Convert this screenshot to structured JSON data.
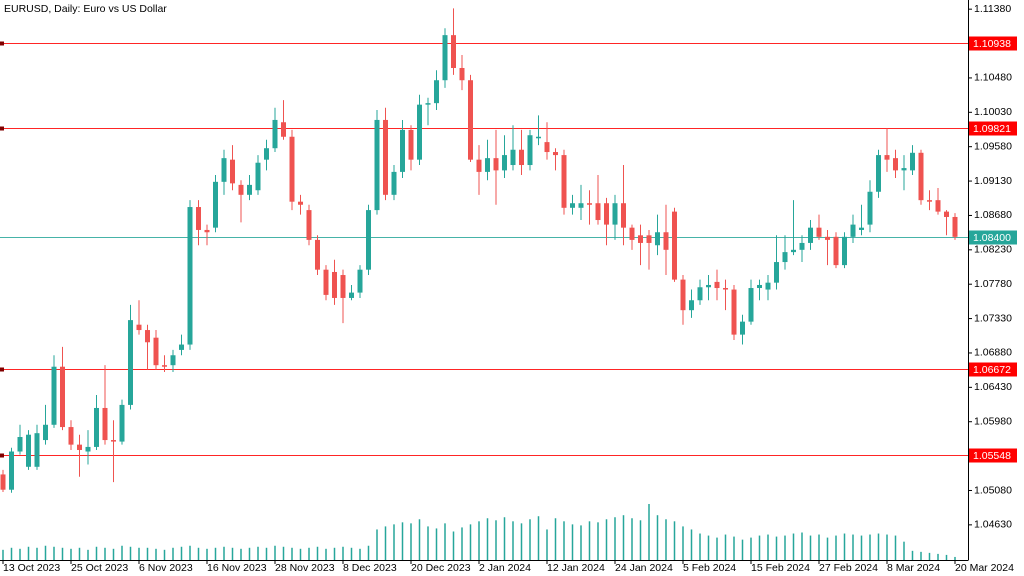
{
  "chart_data": {
    "type": "candlestick",
    "title": "EURUSD, Daily:  Euro vs US Dollar",
    "categories": [
      "13 Oct 2023",
      null,
      null,
      null,
      null,
      null,
      null,
      null,
      "25 Oct 2023",
      null,
      null,
      null,
      null,
      null,
      null,
      null,
      "6 Nov 2023",
      null,
      null,
      null,
      null,
      null,
      null,
      null,
      "16 Nov 2023",
      null,
      null,
      null,
      null,
      null,
      null,
      null,
      "28 Nov 2023",
      null,
      null,
      null,
      null,
      null,
      null,
      null,
      "8 Dec 2023",
      null,
      null,
      null,
      null,
      null,
      null,
      null,
      "20 Dec 2023",
      null,
      null,
      null,
      null,
      null,
      null,
      null,
      "2 Jan 2024",
      null,
      null,
      null,
      null,
      null,
      null,
      null,
      "12 Jan 2024",
      null,
      null,
      null,
      null,
      null,
      null,
      null,
      "24 Jan 2024",
      null,
      null,
      null,
      null,
      null,
      null,
      null,
      "5 Feb 2024",
      null,
      null,
      null,
      null,
      null,
      null,
      null,
      "15 Feb 2024",
      null,
      null,
      null,
      null,
      null,
      null,
      null,
      "27 Feb 2024",
      null,
      null,
      null,
      null,
      null,
      null,
      null,
      "8 Mar 2024",
      null,
      null,
      null,
      null,
      null,
      null,
      null,
      "20 Mar 2024"
    ],
    "open": [
      1.0529,
      1.0509,
      1.0559,
      1.0539,
      1.0539,
      1.0574,
      1.0594,
      1.067,
      1.0591,
      1.0568,
      1.0559,
      1.0565,
      1.0616,
      1.0574,
      1.0572,
      1.062,
      1.0725,
      1.0718,
      1.0708,
      1.0672,
      1.0672,
      1.0692,
      1.0699,
      1.0879,
      1.0849,
      1.0852,
      1.0912,
      1.0941,
      1.0908,
      1.0895,
      1.0901,
      1.0941,
      1.0956,
      1.099,
      1.0971,
      1.0886,
      1.0875,
      1.0836,
      1.0797,
      1.0794,
      1.079,
      1.076,
      1.0767,
      1.0797,
      1.0875,
      1.0993,
      1.0895,
      1.0925,
      1.098,
      1.0941,
      1.1013,
      1.1015,
      1.1045,
      1.1104,
      1.1061,
      1.1045,
      1.0941,
      1.0925,
      1.0943,
      1.0927,
      1.0934,
      1.0954,
      1.0934,
      1.0969,
      1.0964,
      1.0951,
      1.0947,
      1.0878,
      1.0878,
      1.0884,
      1.0884,
      1.0884,
      1.0856,
      1.0884,
      1.0852,
      1.0842,
      1.0842,
      1.0829,
      1.0846,
      1.0873,
      1.0784,
      1.0744,
      1.0757,
      1.0774,
      1.0781,
      1.0773,
      1.0771,
      1.0712,
      1.0729,
      1.0773,
      1.0771,
      1.078,
      1.0807,
      1.082,
      1.0823,
      1.0832,
      1.0852,
      1.084,
      1.084,
      1.0803,
      1.084,
      1.0849,
      1.0856,
      1.0899,
      1.0947,
      1.0943,
      1.0927,
      1.0927,
      1.095,
      1.0888,
      1.0888,
      1.0873,
      1.0866
    ],
    "high": [
      1.0535,
      1.0564,
      1.0594,
      1.0587,
      1.0594,
      1.062,
      1.0685,
      1.0696,
      1.06,
      1.0581,
      1.0587,
      1.0633,
      1.0672,
      1.06,
      1.0627,
      1.0751,
      1.0757,
      1.0725,
      1.0718,
      1.0685,
      1.0692,
      1.0712,
      1.0888,
      1.0888,
      1.0856,
      1.0921,
      1.0954,
      1.096,
      1.0914,
      1.0921,
      1.0947,
      1.0967,
      1.1009,
      1.1019,
      1.098,
      1.0895,
      1.0882,
      1.0842,
      1.0803,
      1.081,
      1.0797,
      1.0777,
      1.0803,
      1.0882,
      1.1006,
      1.1009,
      1.0934,
      1.0993,
      1.0986,
      1.1026,
      1.1022,
      1.1058,
      1.1113,
      1.1139,
      1.1078,
      1.1052,
      1.096,
      1.0967,
      1.098,
      1.0973,
      1.0986,
      1.098,
      1.098,
      1.0999,
      1.099,
      1.0956,
      1.0954,
      1.0895,
      1.0908,
      1.0901,
      1.0921,
      1.0891,
      1.0895,
      1.0934,
      1.0856,
      1.0856,
      1.0849,
      1.0869,
      1.0882,
      1.0878,
      1.079,
      1.0771,
      1.0784,
      1.079,
      1.0797,
      1.0784,
      1.0777,
      1.0738,
      1.0784,
      1.0784,
      1.079,
      1.0842,
      1.0842,
      1.0888,
      1.0842,
      1.0862,
      1.0869,
      1.0849,
      1.0846,
      1.0846,
      1.0869,
      1.0882,
      1.0914,
      1.0954,
      1.0982,
      1.0954,
      1.0947,
      1.096,
      1.0954,
      1.0901,
      1.0904,
      1.0875,
      1.0871
    ],
    "low": [
      1.0506,
      1.0505,
      1.0555,
      1.0535,
      1.0535,
      1.0568,
      1.059,
      1.0587,
      1.0561,
      1.0526,
      1.0542,
      1.0561,
      1.0568,
      1.0519,
      1.0568,
      1.0614,
      1.0712,
      1.0666,
      1.0666,
      1.0663,
      1.0663,
      1.0685,
      1.0692,
      1.0829,
      1.0829,
      1.0846,
      1.0895,
      1.0901,
      1.0859,
      1.0888,
      1.0895,
      1.0927,
      1.0951,
      1.0967,
      1.0875,
      1.0869,
      1.0829,
      1.079,
      1.0757,
      1.0751,
      1.0727,
      1.0757,
      1.076,
      1.079,
      1.0869,
      1.0888,
      1.0888,
      1.0917,
      1.0927,
      1.0934,
      1.0986,
      1.1006,
      1.1035,
      1.1052,
      1.1032,
      1.0938,
      1.0895,
      1.0914,
      1.0882,
      1.0917,
      1.0927,
      1.0921,
      1.0927,
      1.096,
      1.0941,
      1.0927,
      1.0869,
      1.0869,
      1.0862,
      1.0856,
      1.0856,
      1.0829,
      1.0836,
      1.0829,
      1.0823,
      1.0803,
      1.0797,
      1.0816,
      1.079,
      1.0781,
      1.0725,
      1.0734,
      1.0751,
      1.0757,
      1.0757,
      1.0744,
      1.0705,
      1.0699,
      1.0725,
      1.0757,
      1.0757,
      1.0771,
      1.0797,
      1.0816,
      1.0807,
      1.0823,
      1.0836,
      1.0803,
      1.0799,
      1.0799,
      1.0832,
      1.0842,
      1.0846,
      1.0891,
      1.0925,
      1.0917,
      1.0901,
      1.0921,
      1.0882,
      1.0875,
      1.0869,
      1.0842,
      1.0836
    ],
    "close": [
      1.0509,
      1.0559,
      1.0578,
      1.0581,
      1.0583,
      1.0594,
      1.067,
      1.0591,
      1.0568,
      1.0561,
      1.0565,
      1.0616,
      1.0574,
      1.0572,
      1.062,
      1.0731,
      1.0718,
      1.0702,
      1.0672,
      1.067,
      1.0685,
      1.0699,
      1.0879,
      1.0849,
      1.0846,
      1.0912,
      1.0943,
      1.091,
      1.0895,
      1.0908,
      1.0937,
      1.0956,
      1.0993,
      1.0971,
      1.0886,
      1.0882,
      1.0836,
      1.0797,
      1.0764,
      1.076,
      1.076,
      1.0767,
      1.0797,
      1.0875,
      1.0993,
      1.0895,
      1.0925,
      1.098,
      1.0941,
      1.1013,
      1.1015,
      1.1045,
      1.1104,
      1.1061,
      1.1045,
      1.0941,
      1.0925,
      1.0943,
      1.0927,
      1.0947,
      1.0954,
      1.0934,
      1.0973,
      1.0971,
      1.0951,
      1.0947,
      1.0878,
      1.0884,
      1.0884,
      1.0882,
      1.0862,
      1.0856,
      1.0884,
      1.0852,
      1.0836,
      1.0832,
      1.0832,
      1.0846,
      1.0823,
      1.0784,
      1.0744,
      1.0757,
      1.0774,
      1.0777,
      1.0773,
      1.0771,
      1.0712,
      1.0729,
      1.0773,
      1.0777,
      1.078,
      1.0807,
      1.082,
      1.0823,
      1.0832,
      1.0852,
      1.084,
      1.0836,
      1.0803,
      1.084,
      1.0856,
      1.0852,
      1.0899,
      1.0947,
      1.0941,
      1.0927,
      1.093,
      1.095,
      1.0888,
      1.0886,
      1.0873,
      1.0866,
      1.084
    ],
    "volume": [
      10,
      12,
      11,
      13,
      12,
      14,
      13,
      12,
      11,
      12,
      10,
      13,
      12,
      11,
      14,
      13,
      12,
      12,
      11,
      10,
      12,
      13,
      14,
      12,
      11,
      12,
      13,
      12,
      11,
      12,
      13,
      12,
      14,
      13,
      12,
      11,
      12,
      13,
      11,
      12,
      13,
      12,
      11,
      14,
      30,
      33,
      35,
      37,
      36,
      40,
      33,
      31,
      36,
      28,
      32,
      35,
      38,
      41,
      39,
      42,
      38,
      36,
      40,
      43,
      30,
      41,
      38,
      35,
      34,
      38,
      37,
      40,
      42,
      44,
      41,
      39,
      55,
      44,
      40,
      38,
      33,
      30,
      26,
      24,
      22,
      25,
      23,
      20,
      22,
      24,
      25,
      23,
      24,
      26,
      27,
      24,
      25,
      22,
      24,
      26,
      25,
      24,
      25,
      26,
      25,
      24,
      18,
      9,
      8,
      7,
      6,
      5,
      3
    ],
    "up_color": "#26a69a",
    "down_color": "#ef5350",
    "volume_color": "#26a69a",
    "ylim": [
      1.0417,
      1.115
    ],
    "yticks": [
      {
        "value": 1.1138,
        "label": "1.11380"
      },
      {
        "value": 1.1048,
        "label": "1.10480"
      },
      {
        "value": 1.1003,
        "label": "1.10030"
      },
      {
        "value": 1.0958,
        "label": "1.09580"
      },
      {
        "value": 1.0913,
        "label": "1.09130"
      },
      {
        "value": 1.0868,
        "label": "1.08680"
      },
      {
        "value": 1.0823,
        "label": "1.08230"
      },
      {
        "value": 1.0778,
        "label": "1.07780"
      },
      {
        "value": 1.0733,
        "label": "1.07330"
      },
      {
        "value": 1.0688,
        "label": "1.06880"
      },
      {
        "value": 1.0643,
        "label": "1.06430"
      },
      {
        "value": 1.0598,
        "label": "1.05980"
      },
      {
        "value": 1.0508,
        "label": "1.05080"
      },
      {
        "value": 1.0463,
        "label": "1.04630"
      }
    ],
    "levels": [
      {
        "value": 1.10938,
        "color": "#ff0000"
      },
      {
        "value": 1.09821,
        "color": "#ff0000"
      },
      {
        "value": 1.06672,
        "color": "#ff0000"
      },
      {
        "value": 1.05548,
        "color": "#ff0000"
      },
      {
        "value": 1.084,
        "label": "1.08400",
        "color": "#26a69a"
      }
    ],
    "grid": false
  }
}
